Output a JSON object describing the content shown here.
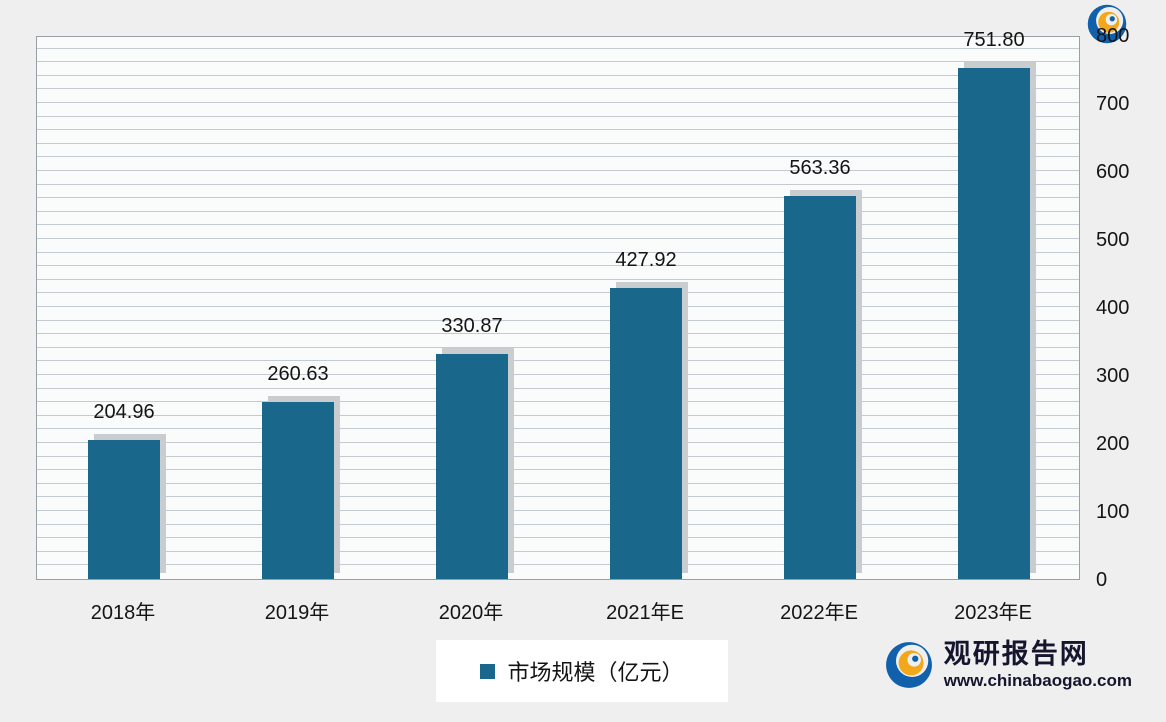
{
  "chart_data": {
    "type": "bar",
    "title": "",
    "categories": [
      "2018年",
      "2019年",
      "2020年",
      "2021年E",
      "2022年E",
      "2023年E"
    ],
    "values": [
      204.96,
      260.63,
      330.87,
      427.92,
      563.36,
      751.8
    ],
    "value_labels": [
      "204.96",
      "260.63",
      "330.87",
      "427.92",
      "563.36",
      "751.80"
    ],
    "xlabel": "",
    "ylabel": "",
    "ylim": [
      0,
      800
    ],
    "y_ticks": [
      0,
      100,
      200,
      300,
      400,
      500,
      600,
      700,
      800
    ],
    "minor_grid_step": 20,
    "grid": true,
    "legend": "市场规模（亿元）",
    "legend_position": "bottom",
    "y_axis_side": "right",
    "bar_color": "#1a678c"
  },
  "branding": {
    "site_name": "观研报告网",
    "site_url": "www.chinabaogao.com"
  }
}
